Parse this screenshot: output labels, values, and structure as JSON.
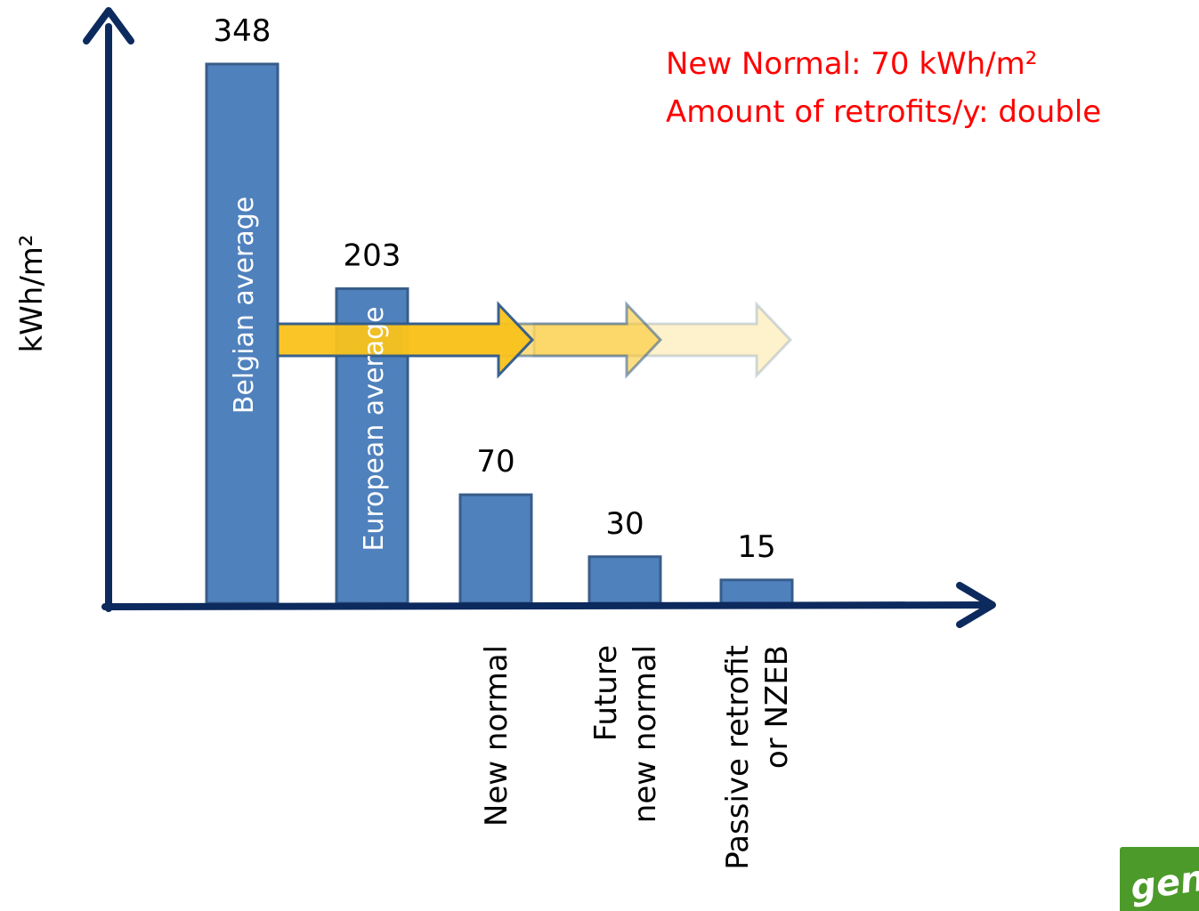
{
  "chart_data": {
    "type": "bar",
    "ylabel": "kWh/m²",
    "xlabel": "",
    "ylim": [
      0,
      348
    ],
    "bars": [
      {
        "value": 348,
        "label": "348",
        "inside_label": "Belgian average",
        "below_label": []
      },
      {
        "value": 203,
        "label": "203",
        "inside_label": "European   average",
        "below_label": []
      },
      {
        "value": 70,
        "label": "70",
        "inside_label": "",
        "below_label": [
          "New normal"
        ]
      },
      {
        "value": 30,
        "label": "30",
        "inside_label": "",
        "below_label": [
          "Future",
          "new normal"
        ]
      },
      {
        "value": 15,
        "label": "15",
        "inside_label": "",
        "below_label": [
          "Passive retrofit",
          "or NZEB"
        ]
      }
    ],
    "annotations": [
      "New Normal: 70 kWh/m²",
      "Amount of retrofits/y:  double"
    ],
    "colors": {
      "bar": "#4f81bd",
      "bar_border": "#385d8a",
      "axis": "#0d2a5e",
      "annotation": "#ff0000",
      "arrow_fill": "#f9c21b",
      "arrow_border": "#2e5b8d"
    }
  },
  "logo": {
    "text": "gen"
  }
}
